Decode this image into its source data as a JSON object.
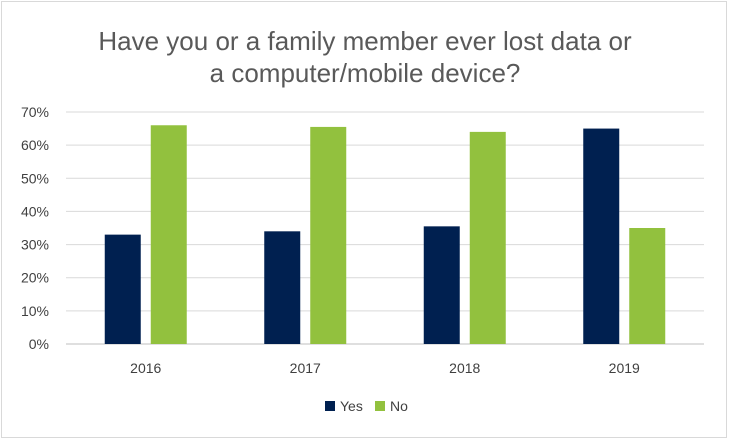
{
  "chart_data": {
    "type": "bar",
    "title_lines": [
      "Have you or a family member ever lost data or",
      "a computer/mobile device?"
    ],
    "categories": [
      "2016",
      "2017",
      "2018",
      "2019"
    ],
    "series": [
      {
        "name": "Yes",
        "color": "#002050",
        "values": [
          33,
          34,
          35.5,
          65
        ]
      },
      {
        "name": "No",
        "color": "#92c13e",
        "values": [
          66,
          65.5,
          64,
          35
        ]
      }
    ],
    "ylim": [
      0,
      70
    ],
    "yticks": [
      0,
      10,
      20,
      30,
      40,
      50,
      60,
      70
    ],
    "ytick_labels": [
      "0%",
      "10%",
      "20%",
      "30%",
      "40%",
      "50%",
      "60%",
      "70%"
    ],
    "grid": true,
    "legend_position": "bottom"
  }
}
